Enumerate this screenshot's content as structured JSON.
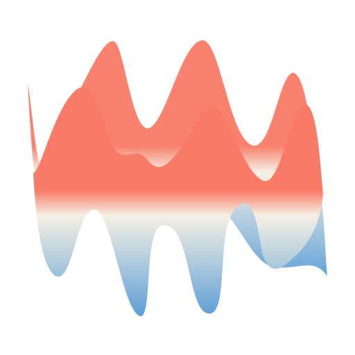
{
  "artwork": {
    "description_label": "",
    "colors": {
      "background": "#ffffff",
      "high": "#f87b67",
      "mid": "#f6f0e4",
      "low": "#5d9fd6"
    }
  }
}
